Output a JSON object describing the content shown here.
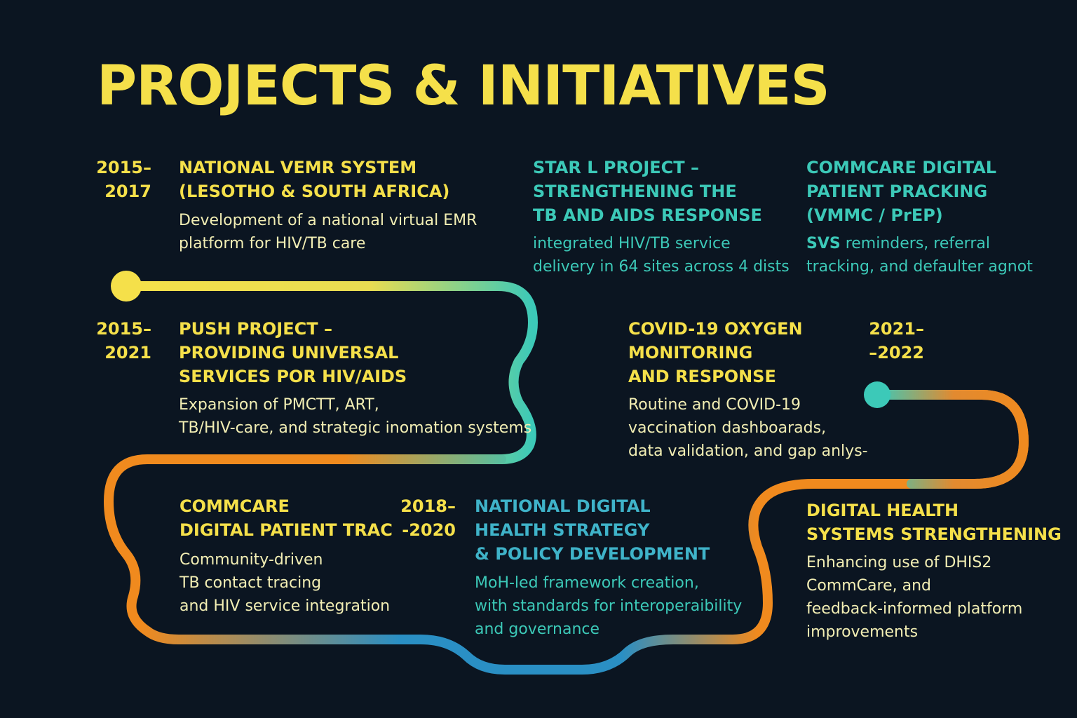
{
  "title": "PROJECTS & INITIATIVES",
  "items": [
    {
      "years": "2015–\n2017",
      "heading": "NATIONAL VEMR SYSTEM\n(LESOTHO & SOUTH AFRICA)",
      "description": "Development of a national virtual EMR\nplatform for HIV/TB care"
    },
    {
      "heading": "STAR L PROJECT –\nSTRENGTHENING THE\nTB AND AIDS RESPONSE",
      "description": "integrated HIV/TB service\ndelivery in 64 sites across 4 dists"
    },
    {
      "heading": "COMMCARE DIGITAL\nPATIENT PRACKING\n(VMMC / PrEP)",
      "description_lead": "SVS",
      "description": " reminders, referral\ntracking, and defaulter agnot"
    },
    {
      "years": "2015–\n2021",
      "heading": "PUSH PROJECT –\nPROVIDING UNIVERSAL\nSERVICES POR HIV/AIDS",
      "description": "Expansion of PMCTT, ART,\nTB/HIV-care, and strategic inomation systems"
    },
    {
      "years": "2021–\n–2022",
      "heading": "COVID-19 OXYGEN\nMONITORING\nAND RESPONSE",
      "description": "Routine and COVID-19\nvaccination dashboarads,\ndata validation, and gap anlys-"
    },
    {
      "years": "2018–\n-2020",
      "heading": "COMMCARE\nDIGITAL PATIENT TRAC",
      "description": "Community-driven\nTB contact tracing\nand HIV service integration"
    },
    {
      "heading": "NATIONAL DIGITAL\nHEALTH STRATEGY\n& POLICY DEVELOPMENT",
      "description": "MoH-led framework creation,\nwith standards for interoperaibility\nand governance"
    },
    {
      "heading": "DIGITAL HEALTH\nSYSTEMS STRENGTHENING",
      "description": "Enhancing use of DHIS2\nCommCare, and\nfeedback-informed platform\nimprovements"
    }
  ],
  "colors": {
    "background": "#0b1521",
    "yellow": "#f5e04a",
    "teal": "#3cc9b8",
    "blue": "#2a8fc4",
    "orange": "#f08a1e"
  }
}
